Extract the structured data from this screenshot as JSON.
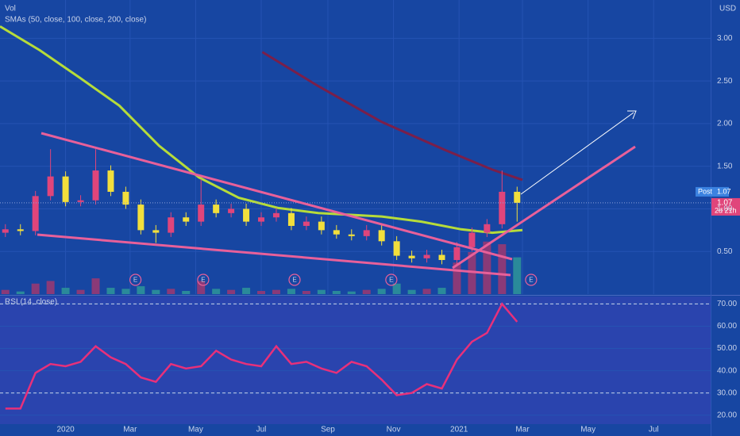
{
  "chart_data": [
    {
      "type": "candlestick",
      "title": "SMAs (50, close, 100, close, 200, close)",
      "volume_label": "Vol",
      "currency": "USD",
      "x": [
        -56,
        -42,
        -28,
        -14,
        0,
        14,
        28,
        42,
        56,
        70,
        84,
        98,
        112,
        126,
        140,
        154,
        168,
        182,
        196,
        210,
        224,
        238,
        252,
        266,
        280,
        294,
        308,
        322,
        336,
        350,
        364,
        378,
        392,
        406,
        420
      ],
      "open": [
        0.72,
        0.76,
        0.74,
        1.15,
        1.38,
        1.08,
        1.1,
        1.45,
        1.2,
        1.05,
        0.75,
        0.72,
        0.9,
        0.85,
        1.05,
        0.95,
        1.0,
        0.85,
        0.9,
        0.95,
        0.8,
        0.85,
        0.75,
        0.7,
        0.68,
        0.75,
        0.62,
        0.45,
        0.42,
        0.46,
        0.4,
        0.55,
        0.72,
        0.82,
        1.2
      ],
      "high": [
        0.82,
        0.82,
        1.21,
        1.7,
        1.44,
        1.16,
        1.7,
        1.51,
        1.26,
        1.11,
        0.81,
        0.96,
        0.96,
        1.35,
        1.11,
        1.06,
        1.06,
        0.96,
        1.01,
        1.01,
        0.91,
        0.91,
        0.81,
        0.76,
        0.81,
        0.81,
        0.68,
        0.51,
        0.52,
        0.52,
        0.61,
        0.78,
        0.88,
        1.45,
        1.26
      ],
      "low": [
        0.67,
        0.69,
        0.69,
        1.1,
        1.03,
        1.03,
        1.05,
        1.15,
        1.0,
        0.7,
        0.6,
        0.67,
        0.8,
        0.8,
        0.9,
        0.9,
        0.8,
        0.8,
        0.85,
        0.75,
        0.75,
        0.7,
        0.65,
        0.63,
        0.63,
        0.57,
        0.4,
        0.37,
        0.37,
        0.35,
        0.35,
        0.5,
        0.67,
        0.77,
        0.85
      ],
      "close": [
        0.76,
        0.74,
        1.15,
        1.38,
        1.08,
        1.1,
        1.45,
        1.2,
        1.05,
        0.75,
        0.72,
        0.9,
        0.85,
        1.05,
        0.95,
        1.0,
        0.85,
        0.9,
        0.95,
        0.8,
        0.85,
        0.75,
        0.7,
        0.68,
        0.75,
        0.62,
        0.45,
        0.42,
        0.46,
        0.4,
        0.55,
        0.72,
        0.82,
        1.2,
        1.07
      ],
      "volume": [
        8,
        5,
        20,
        25,
        12,
        8,
        30,
        12,
        10,
        15,
        8,
        10,
        6,
        25,
        10,
        8,
        12,
        6,
        8,
        10,
        6,
        8,
        6,
        5,
        8,
        10,
        20,
        8,
        10,
        12,
        60,
        80,
        100,
        95,
        70
      ],
      "up_color": "#e0457b",
      "down_color": "#f2df3c",
      "volume_up_color": "#8a3a78",
      "volume_down_color": "#2a8a9a",
      "lines": [
        {
          "color": "#b6dc3a",
          "x": [
            -61,
            -24,
            13,
            50,
            87,
            124,
            161,
            198,
            235,
            294,
            331,
            368,
            397,
            425
          ],
          "values": [
            3.14,
            2.86,
            2.54,
            2.21,
            1.74,
            1.37,
            1.13,
            1.01,
            0.95,
            0.91,
            0.85,
            0.76,
            0.72,
            0.75
          ]
        },
        {
          "color": "#7a1f4a",
          "x": [
            183,
            235,
            294,
            353,
            397,
            425
          ],
          "values": [
            2.84,
            2.44,
            2.02,
            1.69,
            1.46,
            1.34
          ]
        }
      ],
      "events": [
        {
          "x": 65,
          "label": "E"
        },
        {
          "x": 128,
          "label": "E"
        },
        {
          "x": 213,
          "label": "E"
        },
        {
          "x": 303,
          "label": "E"
        },
        {
          "x": 433,
          "label": "E"
        }
      ],
      "last_price": 1.07,
      "post_label": "Post",
      "countdown": "2d 21h",
      "xlim": [
        -61,
        600
      ],
      "xticks": [
        {
          "value": 0,
          "label": "2020"
        },
        {
          "value": 60,
          "label": "Mar"
        },
        {
          "value": 121,
          "label": "May"
        },
        {
          "value": 182,
          "label": "Jul"
        },
        {
          "value": 244,
          "label": "Sep"
        },
        {
          "value": 305,
          "label": "Nov"
        },
        {
          "value": 366,
          "label": "2021"
        },
        {
          "value": 425,
          "label": "Mar"
        },
        {
          "value": 486,
          "label": "May"
        },
        {
          "value": 547,
          "label": "Jul"
        }
      ],
      "ylim": [
        0,
        3.45
      ],
      "yticks": [
        {
          "value": 0.5,
          "label": "0.50"
        },
        {
          "value": 1,
          "label": "1.00"
        },
        {
          "value": 1.5,
          "label": "1.50"
        },
        {
          "value": 2,
          "label": "2.00"
        },
        {
          "value": 2.5,
          "label": "2.50"
        },
        {
          "value": 3,
          "label": "3.00"
        }
      ],
      "y2lim": [
        0,
        560
      ],
      "grid": true
    },
    {
      "type": "line",
      "title": "RSI (14, close)",
      "x": [
        -56,
        -42,
        -28,
        -14,
        0,
        14,
        28,
        42,
        56,
        70,
        84,
        98,
        112,
        126,
        140,
        154,
        168,
        182,
        196,
        210,
        224,
        238,
        252,
        266,
        280,
        294,
        308,
        322,
        336,
        350,
        364,
        378,
        392,
        406,
        420
      ],
      "values": [
        23,
        23,
        39,
        43,
        42,
        44,
        51,
        46,
        43,
        37,
        35,
        43,
        41,
        42,
        49,
        45,
        43,
        42,
        51,
        43,
        44,
        41,
        39,
        44,
        42,
        36,
        29,
        30,
        34,
        32,
        45,
        53,
        57,
        70,
        62
      ],
      "color": "#e8307a",
      "levels": [
        70,
        30
      ],
      "xlim": [
        -61,
        600
      ],
      "ylim": [
        16,
        73
      ],
      "yticks": [
        {
          "value": 20,
          "label": "20.00"
        },
        {
          "value": 30,
          "label": "30.00"
        },
        {
          "value": 40,
          "label": "40.00"
        },
        {
          "value": 50,
          "label": "50.00"
        },
        {
          "value": 60,
          "label": "60.00"
        },
        {
          "value": 70,
          "label": "70.00"
        }
      ],
      "grid": true
    }
  ]
}
